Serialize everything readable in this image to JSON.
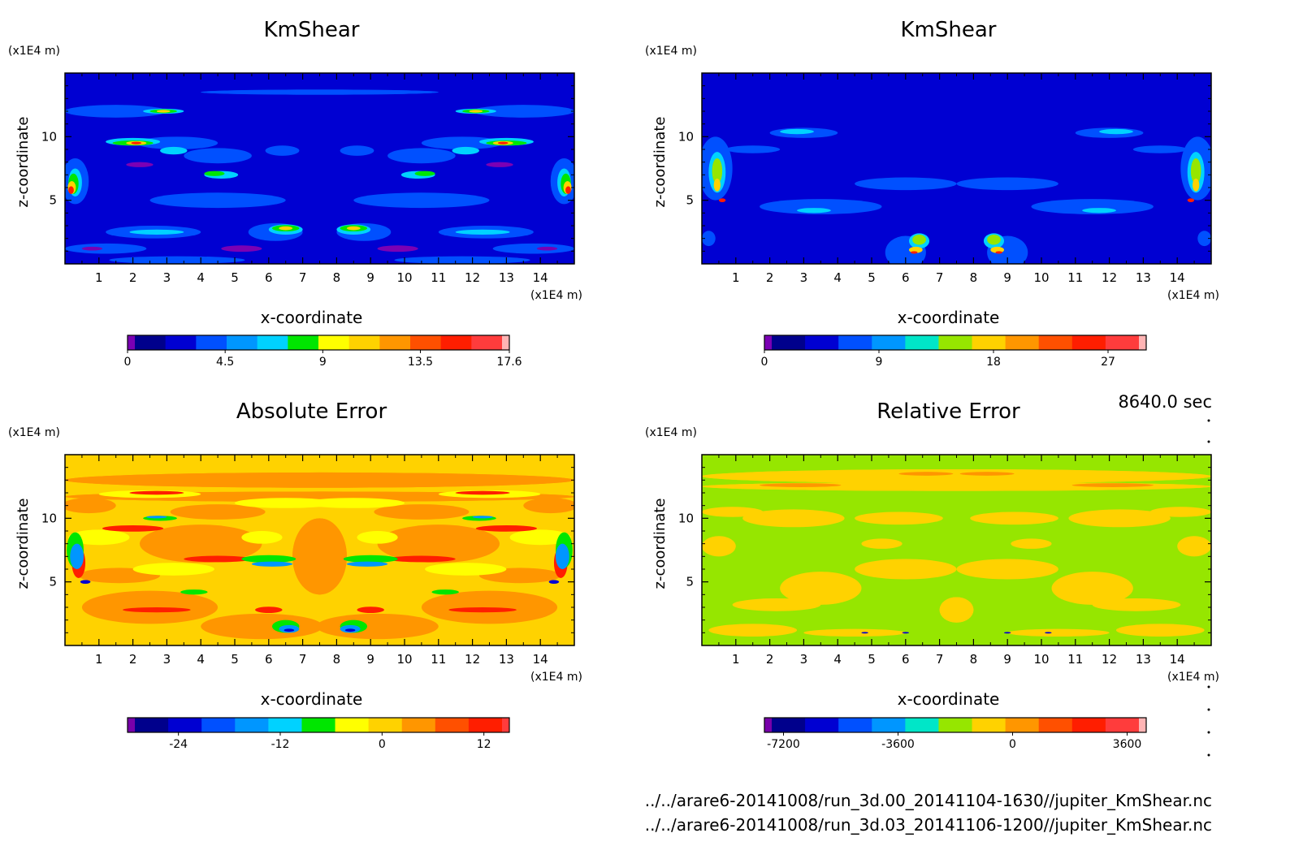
{
  "panels": [
    {
      "title": "KmShear",
      "field": "km1",
      "z_unit": "(x1E4 m)",
      "x_unit": "(x1E4 m)",
      "xlabel": "x-coordinate",
      "ylabel": "z-coordinate",
      "x_ticks": [
        "1",
        "2",
        "3",
        "4",
        "5",
        "6",
        "7",
        "8",
        "9",
        "10",
        "11",
        "12",
        "13",
        "14"
      ],
      "z_ticks": [
        "5",
        "10"
      ],
      "colorbar": {
        "colors": [
          "#7b00b4",
          "#00008c",
          "#0000d2",
          "#0050ff",
          "#0096ff",
          "#00d2ff",
          "#00e600",
          "#ffff00",
          "#ffd200",
          "#ff9600",
          "#ff5000",
          "#ff1e00",
          "#ff3c3c",
          "#ffb4b4"
        ],
        "labels": [
          "0",
          "4.5",
          "9",
          "13.5",
          "17.6"
        ]
      }
    },
    {
      "title": "KmShear",
      "field": "km2",
      "z_unit": "(x1E4 m)",
      "x_unit": "(x1E4 m)",
      "xlabel": "x-coordinate",
      "ylabel": "z-coordinate",
      "x_ticks": [
        "1",
        "2",
        "3",
        "4",
        "5",
        "6",
        "7",
        "8",
        "9",
        "10",
        "11",
        "12",
        "13",
        "14"
      ],
      "z_ticks": [
        "5",
        "10"
      ],
      "colorbar": {
        "colors": [
          "#7b00b4",
          "#00008c",
          "#0000d2",
          "#0050ff",
          "#0096ff",
          "#00e6c8",
          "#96e600",
          "#ffd200",
          "#ff9600",
          "#ff5000",
          "#ff1e00",
          "#ff3c3c",
          "#ffb4b4"
        ],
        "labels": [
          "0",
          "9",
          "18",
          "27"
        ]
      }
    },
    {
      "title": "Absolute Error",
      "field": "abs",
      "z_unit": "(x1E4 m)",
      "x_unit": "(x1E4 m)",
      "xlabel": "x-coordinate",
      "ylabel": "z-coordinate",
      "x_ticks": [
        "1",
        "2",
        "3",
        "4",
        "5",
        "6",
        "7",
        "8",
        "9",
        "10",
        "11",
        "12",
        "13",
        "14"
      ],
      "z_ticks": [
        "5",
        "10"
      ],
      "colorbar": {
        "colors": [
          "#7800aa",
          "#00008c",
          "#0000d2",
          "#0050ff",
          "#0096ff",
          "#00d2ff",
          "#00e600",
          "#ffff00",
          "#ffd200",
          "#ff9600",
          "#ff5000",
          "#ff1e00",
          "#ff3c3c"
        ],
        "labels": [
          "-24",
          "-12",
          "0",
          "12"
        ]
      }
    },
    {
      "title": "Relative Error",
      "field": "rel",
      "z_unit": "(x1E4 m)",
      "x_unit": "(x1E4 m)",
      "xlabel": "x-coordinate",
      "ylabel": "z-coordinate",
      "x_ticks": [
        "1",
        "2",
        "3",
        "4",
        "5",
        "6",
        "7",
        "8",
        "9",
        "10",
        "11",
        "12",
        "13",
        "14"
      ],
      "z_ticks": [
        "5",
        "10"
      ],
      "colorbar": {
        "colors": [
          "#7800aa",
          "#00008c",
          "#0000d2",
          "#0050ff",
          "#0096ff",
          "#00e6c8",
          "#96e600",
          "#ffd200",
          "#ff9600",
          "#ff5000",
          "#ff1e00",
          "#ff3c3c",
          "#ffb4b4"
        ],
        "labels": [
          "-7200",
          "-3600",
          "0",
          "3600"
        ]
      }
    }
  ],
  "footer": {
    "time": "8640.0 sec",
    "file1": "../../arare6-20141008/run_3d.00_20141104-1630//jupiter_KmShear.nc",
    "file2": "../../arare6-20141008/run_3d.03_20141106-1200//jupiter_KmShear.nc"
  },
  "chart_data": [
    {
      "type": "heatmap",
      "title": "KmShear",
      "xlabel": "x-coordinate",
      "ylabel": "z-coordinate",
      "xlim": [
        0,
        15
      ],
      "ylim": [
        0,
        15
      ],
      "x_unit": "(x1E4 m)",
      "y_unit": "(x1E4 m)",
      "colorbar_range": [
        0,
        17.6
      ],
      "colorbar_ticks": [
        0,
        4.5,
        9,
        13.5,
        17.6
      ]
    },
    {
      "type": "heatmap",
      "title": "KmShear",
      "xlabel": "x-coordinate",
      "ylabel": "z-coordinate",
      "xlim": [
        0,
        15
      ],
      "ylim": [
        0,
        15
      ],
      "x_unit": "(x1E4 m)",
      "y_unit": "(x1E4 m)",
      "colorbar_range": [
        0,
        30
      ],
      "colorbar_ticks": [
        0,
        9,
        18,
        27
      ]
    },
    {
      "type": "heatmap",
      "title": "Absolute Error",
      "xlabel": "x-coordinate",
      "ylabel": "z-coordinate",
      "xlim": [
        0,
        15
      ],
      "ylim": [
        0,
        15
      ],
      "x_unit": "(x1E4 m)",
      "y_unit": "(x1E4 m)",
      "colorbar_range": [
        -30,
        15
      ],
      "colorbar_ticks": [
        -24,
        -12,
        0,
        12
      ]
    },
    {
      "type": "heatmap",
      "title": "Relative Error",
      "xlabel": "x-coordinate",
      "ylabel": "z-coordinate",
      "xlim": [
        0,
        15
      ],
      "ylim": [
        0,
        15
      ],
      "x_unit": "(x1E4 m)",
      "y_unit": "(x1E4 m)",
      "colorbar_range": [
        -7800,
        4200
      ],
      "colorbar_ticks": [
        -7200,
        -3600,
        0,
        3600
      ]
    }
  ]
}
